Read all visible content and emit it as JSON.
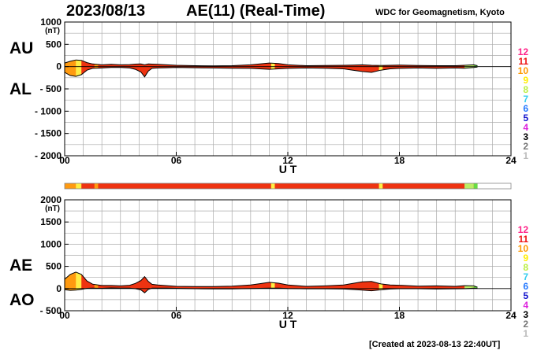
{
  "header": {
    "date": "2023/08/13",
    "title": "AE(11) (Real-Time)",
    "source": "WDC for Geomagnetism, Kyoto"
  },
  "footer": {
    "created": "[Created at 2023-08-13 22:40UT]"
  },
  "colors": {
    "fill_main": "#ee3311",
    "fill_orange": "#ff9a10",
    "fill_yellow": "#ffee44",
    "fill_green": "#66dd44",
    "fill_lightgreen": "#bbee66",
    "grid": "#aaaaaa"
  },
  "legend": {
    "items": [
      {
        "label": "12",
        "color": "#ff2288"
      },
      {
        "label": "11",
        "color": "#ee1111"
      },
      {
        "label": "10",
        "color": "#ff9900"
      },
      {
        "label": "9",
        "color": "#ffee00"
      },
      {
        "label": "8",
        "color": "#bbee44"
      },
      {
        "label": "7",
        "color": "#33ccee"
      },
      {
        "label": "6",
        "color": "#2277ff"
      },
      {
        "label": "5",
        "color": "#1111cc"
      },
      {
        "label": "4",
        "color": "#dd22dd"
      },
      {
        "label": "3",
        "color": "#000000"
      },
      {
        "label": "2",
        "color": "#777777"
      },
      {
        "label": "1",
        "color": "#bbbbbb"
      }
    ]
  },
  "chart_data": [
    {
      "type": "area",
      "panel": "AU / AL",
      "series_labels": [
        "AU",
        "AL"
      ],
      "unit": "(nT)",
      "xlabel": "U T",
      "xlim": [
        0,
        24
      ],
      "xticks": [
        "00",
        "06",
        "12",
        "18",
        "24"
      ],
      "ylim": [
        -2000,
        1000
      ],
      "yticks": [
        "1000",
        "500",
        "0",
        "- 500",
        "- 1000",
        "- 1500",
        "- 2000"
      ],
      "ytick_values": [
        1000,
        500,
        0,
        -500,
        -1000,
        -1500,
        -2000
      ],
      "grid": true,
      "x": [
        0,
        0.3,
        0.6,
        0.9,
        1.2,
        1.5,
        2,
        2.5,
        3,
        3.5,
        3.8,
        4.1,
        4.3,
        4.5,
        4.7,
        5,
        5.5,
        6,
        7,
        8,
        9,
        10,
        10.5,
        11,
        11.5,
        12,
        13,
        14,
        15,
        15.5,
        16,
        16.5,
        17,
        17.5,
        18,
        19,
        20,
        21,
        21.5,
        22,
        22.2
      ],
      "series": [
        {
          "name": "AU",
          "values": [
            80,
            120,
            150,
            140,
            90,
            60,
            40,
            50,
            40,
            45,
            55,
            60,
            40,
            60,
            55,
            50,
            40,
            30,
            20,
            15,
            20,
            40,
            60,
            80,
            70,
            40,
            20,
            25,
            30,
            35,
            40,
            30,
            25,
            30,
            35,
            25,
            20,
            20,
            30,
            40,
            20
          ]
        },
        {
          "name": "AL",
          "values": [
            -130,
            -200,
            -220,
            -180,
            -80,
            -40,
            -30,
            -20,
            -20,
            -30,
            -60,
            -120,
            -230,
            -100,
            -40,
            -30,
            -25,
            -20,
            -25,
            -30,
            -35,
            -40,
            -50,
            -60,
            -50,
            -40,
            -30,
            -35,
            -50,
            -80,
            -110,
            -130,
            -80,
            -50,
            -40,
            -30,
            -40,
            -30,
            -35,
            -20,
            -10
          ]
        }
      ],
      "activity_colors": [
        {
          "x0": 0,
          "x1": 0.6,
          "color": "orange"
        },
        {
          "x0": 0.6,
          "x1": 0.9,
          "color": "yellow"
        },
        {
          "x0": 1.6,
          "x1": 1.8,
          "color": "orange"
        },
        {
          "x0": 11.1,
          "x1": 11.3,
          "color": "yellow"
        },
        {
          "x0": 16.9,
          "x1": 17.1,
          "color": "yellow"
        },
        {
          "x0": 21.5,
          "x1": 22.0,
          "color": "lightgreen"
        },
        {
          "x0": 22.0,
          "x1": 22.2,
          "color": "green"
        }
      ]
    },
    {
      "type": "area",
      "panel": "AE / AO",
      "series_labels": [
        "AE",
        "AO"
      ],
      "unit": "(nT)",
      "xlabel": "U T",
      "xlim": [
        0,
        24
      ],
      "xticks": [
        "00",
        "06",
        "12",
        "18",
        "24"
      ],
      "ylim": [
        -500,
        2000
      ],
      "yticks": [
        "2000",
        "1500",
        "1000",
        "500",
        "0",
        "- 500"
      ],
      "ytick_values": [
        2000,
        1500,
        1000,
        500,
        0,
        -500
      ],
      "grid": true,
      "x": [
        0,
        0.3,
        0.6,
        0.9,
        1.2,
        1.5,
        2,
        2.5,
        3,
        3.5,
        3.8,
        4.1,
        4.3,
        4.5,
        4.7,
        5,
        5.5,
        6,
        7,
        8,
        9,
        10,
        10.5,
        11,
        11.5,
        12,
        13,
        14,
        15,
        15.5,
        16,
        16.5,
        17,
        17.5,
        18,
        19,
        20,
        21,
        21.5,
        22,
        22.2
      ],
      "series": [
        {
          "name": "AE",
          "values": [
            210,
            320,
            370,
            320,
            170,
            100,
            70,
            70,
            60,
            75,
            115,
            180,
            270,
            160,
            95,
            80,
            65,
            50,
            45,
            45,
            55,
            80,
            110,
            140,
            120,
            80,
            50,
            60,
            80,
            115,
            150,
            160,
            105,
            80,
            75,
            55,
            60,
            50,
            65,
            60,
            30
          ]
        },
        {
          "name": "AO",
          "values": [
            -25,
            -40,
            -35,
            -20,
            5,
            10,
            5,
            15,
            10,
            8,
            -3,
            -30,
            -95,
            -20,
            8,
            10,
            8,
            5,
            -3,
            -8,
            -8,
            0,
            5,
            10,
            10,
            0,
            -5,
            -5,
            -10,
            -22,
            -35,
            -50,
            -28,
            -10,
            -3,
            -3,
            -10,
            -5,
            -3,
            10,
            5
          ]
        }
      ]
    }
  ]
}
